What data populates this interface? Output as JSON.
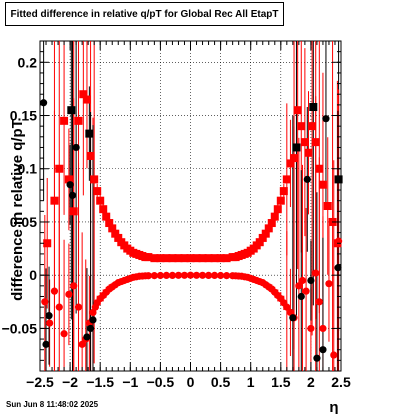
{
  "chart_data": {
    "type": "scatter",
    "title": "Fitted difference in relative q/pT for Global Rec All EtapT",
    "xlabel": "η",
    "ylabel": "difference in relative q/pT",
    "xlim": [
      -2.5,
      2.5
    ],
    "ylim": [
      -0.09,
      0.22
    ],
    "grid": true,
    "x_ticks": [
      -2.5,
      -2,
      -1.5,
      -1,
      -0.5,
      0,
      0.5,
      1,
      1.5,
      2,
      2.5
    ],
    "x_tick_labels": [
      "−2.5",
      "−2",
      "−1.5",
      "−1",
      "−0.5",
      "0",
      "0.5",
      "1",
      "1.5",
      "2",
      "2.5"
    ],
    "y_ticks": [
      -0.05,
      0,
      0.05,
      0.1,
      0.15,
      0.2
    ],
    "y_tick_labels": [
      "−0.05",
      "0",
      "0.05",
      "0.1",
      "0.15",
      "0.2"
    ],
    "series": [
      {
        "marker": "square",
        "color": "#ff0000",
        "points": [
          {
            "x": -2.38,
            "y": 0.03
          },
          {
            "x": -2.26,
            "y": 0.07
          },
          {
            "x": -2.18,
            "y": 0.1
          },
          {
            "x": -2.1,
            "y": 0.145
          },
          {
            "x": -2.02,
            "y": 0.09
          },
          {
            "x": -1.94,
            "y": 0.06
          },
          {
            "x": -1.86,
            "y": 0.145
          },
          {
            "x": -1.78,
            "y": 0.17
          },
          {
            "x": -1.72,
            "y": 0.165
          },
          {
            "x": -1.66,
            "y": 0.112
          },
          {
            "x": -1.6,
            "y": 0.09
          },
          {
            "x": -1.55,
            "y": 0.079
          },
          {
            "x": -1.5,
            "y": 0.07
          },
          {
            "x": -1.45,
            "y": 0.062
          },
          {
            "x": -1.4,
            "y": 0.055
          },
          {
            "x": -1.35,
            "y": 0.049
          },
          {
            "x": -1.3,
            "y": 0.044
          },
          {
            "x": -1.25,
            "y": 0.039
          },
          {
            "x": -1.2,
            "y": 0.035
          },
          {
            "x": -1.15,
            "y": 0.031
          },
          {
            "x": -1.1,
            "y": 0.028
          },
          {
            "x": -1.05,
            "y": 0.025
          },
          {
            "x": -1.0,
            "y": 0.023
          },
          {
            "x": -0.95,
            "y": 0.021
          },
          {
            "x": -0.9,
            "y": 0.02
          },
          {
            "x": -0.85,
            "y": 0.019
          },
          {
            "x": -0.8,
            "y": 0.018
          },
          {
            "x": -0.75,
            "y": 0.017
          },
          {
            "x": -0.7,
            "y": 0.017
          },
          {
            "x": -0.6,
            "y": 0.016
          },
          {
            "x": -0.5,
            "y": 0.016
          },
          {
            "x": -0.4,
            "y": 0.016
          },
          {
            "x": -0.3,
            "y": 0.016
          },
          {
            "x": -0.2,
            "y": 0.016
          },
          {
            "x": -0.1,
            "y": 0.016
          },
          {
            "x": 0.0,
            "y": 0.016
          },
          {
            "x": 0.1,
            "y": 0.016
          },
          {
            "x": 0.2,
            "y": 0.016
          },
          {
            "x": 0.3,
            "y": 0.016
          },
          {
            "x": 0.4,
            "y": 0.016
          },
          {
            "x": 0.5,
            "y": 0.016
          },
          {
            "x": 0.6,
            "y": 0.016
          },
          {
            "x": 0.7,
            "y": 0.017
          },
          {
            "x": 0.75,
            "y": 0.017
          },
          {
            "x": 0.8,
            "y": 0.018
          },
          {
            "x": 0.85,
            "y": 0.019
          },
          {
            "x": 0.9,
            "y": 0.02
          },
          {
            "x": 0.95,
            "y": 0.021
          },
          {
            "x": 1.0,
            "y": 0.023
          },
          {
            "x": 1.05,
            "y": 0.025
          },
          {
            "x": 1.1,
            "y": 0.028
          },
          {
            "x": 1.15,
            "y": 0.031
          },
          {
            "x": 1.2,
            "y": 0.035
          },
          {
            "x": 1.25,
            "y": 0.039
          },
          {
            "x": 1.3,
            "y": 0.044
          },
          {
            "x": 1.35,
            "y": 0.049
          },
          {
            "x": 1.4,
            "y": 0.055
          },
          {
            "x": 1.45,
            "y": 0.062
          },
          {
            "x": 1.5,
            "y": 0.07
          },
          {
            "x": 1.55,
            "y": 0.079
          },
          {
            "x": 1.6,
            "y": 0.09
          },
          {
            "x": 1.66,
            "y": 0.105
          },
          {
            "x": 1.72,
            "y": 0.11
          },
          {
            "x": 1.78,
            "y": 0.155
          },
          {
            "x": 1.84,
            "y": 0.14
          },
          {
            "x": 1.9,
            "y": 0.125
          },
          {
            "x": 1.96,
            "y": 0.115
          },
          {
            "x": 2.02,
            "y": 0.14
          },
          {
            "x": 2.08,
            "y": 0.125
          },
          {
            "x": 2.14,
            "y": 0.1
          },
          {
            "x": 2.2,
            "y": 0.085
          },
          {
            "x": 2.28,
            "y": 0.065
          },
          {
            "x": 2.36,
            "y": 0.05
          },
          {
            "x": 2.44,
            "y": 0.03
          }
        ]
      },
      {
        "marker": "square",
        "color": "#000000",
        "points": [
          {
            "x": -1.98,
            "y": 0.155
          },
          {
            "x": -1.68,
            "y": 0.133
          },
          {
            "x": 1.76,
            "y": 0.12
          },
          {
            "x": 2.04,
            "y": 0.158
          },
          {
            "x": 2.46,
            "y": 0.09
          }
        ]
      },
      {
        "marker": "circle",
        "color": "#ff0000",
        "points": [
          {
            "x": -2.42,
            "y": -0.025
          },
          {
            "x": -2.34,
            "y": -0.045
          },
          {
            "x": -2.26,
            "y": -0.015
          },
          {
            "x": -2.18,
            "y": -0.03
          },
          {
            "x": -2.1,
            "y": -0.055
          },
          {
            "x": -2.02,
            "y": -0.018
          },
          {
            "x": -1.94,
            "y": -0.01
          },
          {
            "x": -1.86,
            "y": -0.03
          },
          {
            "x": -1.8,
            "y": -0.065
          },
          {
            "x": -1.74,
            "y": -0.06
          },
          {
            "x": -1.68,
            "y": -0.045
          },
          {
            "x": -1.62,
            "y": -0.035
          },
          {
            "x": -1.58,
            "y": -0.03
          },
          {
            "x": -1.55,
            "y": -0.026
          },
          {
            "x": -1.5,
            "y": -0.022
          },
          {
            "x": -1.45,
            "y": -0.019
          },
          {
            "x": -1.4,
            "y": -0.016
          },
          {
            "x": -1.35,
            "y": -0.013
          },
          {
            "x": -1.3,
            "y": -0.011
          },
          {
            "x": -1.25,
            "y": -0.009
          },
          {
            "x": -1.2,
            "y": -0.007
          },
          {
            "x": -1.15,
            "y": -0.006
          },
          {
            "x": -1.1,
            "y": -0.005
          },
          {
            "x": -1.05,
            "y": -0.004
          },
          {
            "x": -1.0,
            "y": -0.003
          },
          {
            "x": -0.95,
            "y": -0.002
          },
          {
            "x": -0.9,
            "y": -0.0015
          },
          {
            "x": -0.85,
            "y": -0.001
          },
          {
            "x": -0.8,
            "y": -0.0008
          },
          {
            "x": -0.75,
            "y": -0.0006
          },
          {
            "x": -0.7,
            "y": -0.0005
          },
          {
            "x": -0.6,
            "y": -0.0004
          },
          {
            "x": -0.5,
            "y": -0.0003
          },
          {
            "x": -0.4,
            "y": -0.0002
          },
          {
            "x": -0.3,
            "y": -0.0002
          },
          {
            "x": -0.2,
            "y": -0.0001
          },
          {
            "x": -0.1,
            "y": -0.0001
          },
          {
            "x": 0.0,
            "y": 0.0
          },
          {
            "x": 0.1,
            "y": -0.0001
          },
          {
            "x": 0.2,
            "y": -0.0001
          },
          {
            "x": 0.3,
            "y": -0.0002
          },
          {
            "x": 0.4,
            "y": -0.0002
          },
          {
            "x": 0.5,
            "y": -0.0003
          },
          {
            "x": 0.6,
            "y": -0.0004
          },
          {
            "x": 0.7,
            "y": -0.0005
          },
          {
            "x": 0.75,
            "y": -0.0006
          },
          {
            "x": 0.8,
            "y": -0.0008
          },
          {
            "x": 0.85,
            "y": -0.001
          },
          {
            "x": 0.9,
            "y": -0.0015
          },
          {
            "x": 0.95,
            "y": -0.002
          },
          {
            "x": 1.0,
            "y": -0.003
          },
          {
            "x": 1.05,
            "y": -0.004
          },
          {
            "x": 1.1,
            "y": -0.005
          },
          {
            "x": 1.15,
            "y": -0.006
          },
          {
            "x": 1.2,
            "y": -0.007
          },
          {
            "x": 1.25,
            "y": -0.009
          },
          {
            "x": 1.3,
            "y": -0.011
          },
          {
            "x": 1.35,
            "y": -0.013
          },
          {
            "x": 1.4,
            "y": -0.016
          },
          {
            "x": 1.45,
            "y": -0.019
          },
          {
            "x": 1.5,
            "y": -0.022
          },
          {
            "x": 1.55,
            "y": -0.026
          },
          {
            "x": 1.6,
            "y": -0.03
          },
          {
            "x": 1.66,
            "y": -0.035
          },
          {
            "x": 1.72,
            "y": -0.04
          },
          {
            "x": 1.8,
            "y": -0.01
          },
          {
            "x": 1.86,
            "y": -0.005
          },
          {
            "x": 1.92,
            "y": -0.015
          },
          {
            "x": 2.0,
            "y": -0.05
          },
          {
            "x": 2.08,
            "y": 0.002
          },
          {
            "x": 2.14,
            "y": -0.025
          },
          {
            "x": 2.2,
            "y": -0.05
          },
          {
            "x": 2.3,
            "y": -0.008
          },
          {
            "x": 2.38,
            "y": -0.075
          },
          {
            "x": 2.46,
            "y": 0.032
          }
        ]
      },
      {
        "marker": "circle",
        "color": "#000000",
        "points": [
          {
            "x": -2.44,
            "y": 0.162
          },
          {
            "x": -2.4,
            "y": -0.065
          },
          {
            "x": -2.35,
            "y": -0.038
          },
          {
            "x": -2.0,
            "y": 0.085
          },
          {
            "x": -1.96,
            "y": 0.075
          },
          {
            "x": -1.9,
            "y": 0.12
          },
          {
            "x": -1.72,
            "y": -0.058
          },
          {
            "x": -1.66,
            "y": -0.05
          },
          {
            "x": -1.62,
            "y": -0.042
          },
          {
            "x": 1.7,
            "y": -0.04
          },
          {
            "x": 1.84,
            "y": -0.02
          },
          {
            "x": 1.94,
            "y": 0.09
          },
          {
            "x": 2.0,
            "y": -0.005
          },
          {
            "x": 2.1,
            "y": -0.078
          },
          {
            "x": 2.2,
            "y": -0.07
          },
          {
            "x": 2.25,
            "y": 0.147
          },
          {
            "x": 2.45,
            "y": 0.007
          }
        ]
      }
    ]
  },
  "footer": {
    "timestamp": "Sun Jun  8 11:48:02 2025"
  }
}
